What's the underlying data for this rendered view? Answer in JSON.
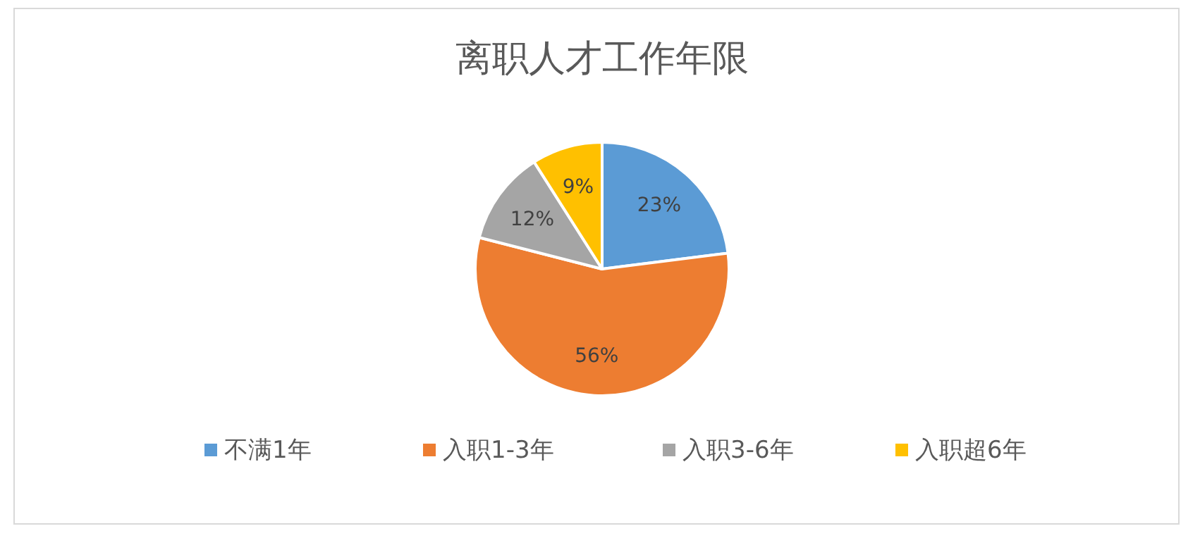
{
  "chart_data": {
    "type": "pie",
    "title": "离职人才工作年限",
    "categories": [
      "不满1年",
      "入职1-3年",
      "入职3-6年",
      "入职超6年"
    ],
    "values": [
      23,
      56,
      12,
      9
    ],
    "colors": [
      "#5b9bd5",
      "#ed7d31",
      "#a5a5a5",
      "#ffc000"
    ],
    "value_labels": [
      "23%",
      "56%",
      "12%",
      "9%"
    ],
    "legend": "bottom"
  }
}
